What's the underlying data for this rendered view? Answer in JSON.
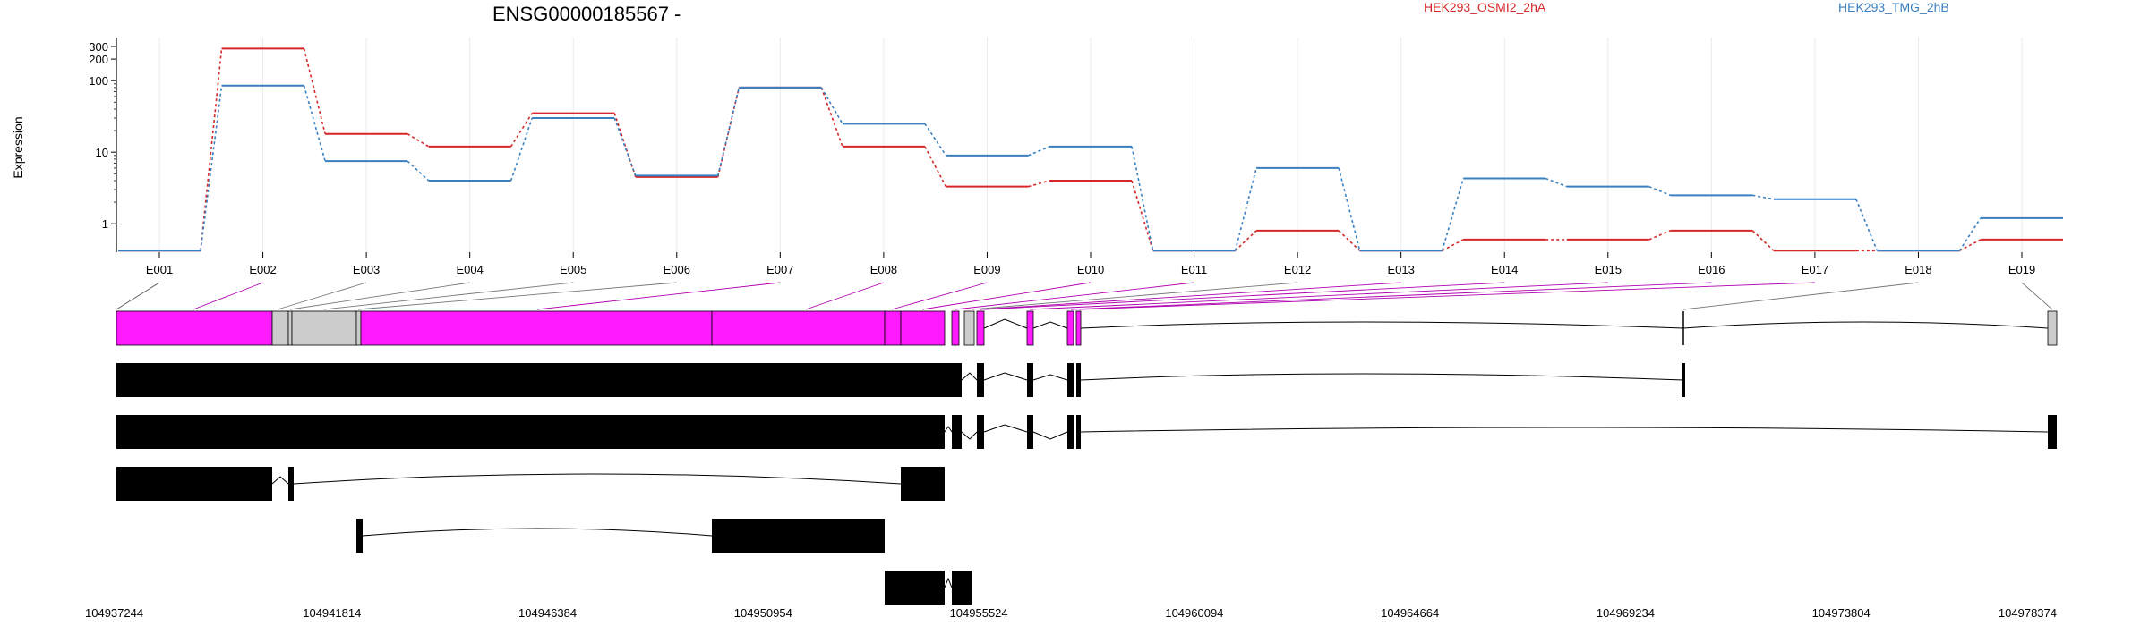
{
  "chart_data": {
    "type": "line",
    "title": "ENSG00000185567 -",
    "ylabel": "Expression",
    "yscale": "log",
    "ylim": [
      0.4,
      400
    ],
    "yticks": [
      1,
      10,
      100,
      200,
      300
    ],
    "ytick_labels": [
      "1",
      "10",
      "100",
      "200",
      "300"
    ],
    "categories": [
      "E001",
      "E002",
      "E003",
      "E004",
      "E005",
      "E006",
      "E007",
      "E008",
      "E009",
      "E010",
      "E011",
      "E012",
      "E013",
      "E014",
      "E015",
      "E016",
      "E017",
      "E018",
      "E019"
    ],
    "series": [
      {
        "name": "HEK293_OSMI2_2hA",
        "color": "#d62728",
        "values": [
          0.42,
          280,
          18,
          12,
          35,
          4.5,
          80,
          12,
          3.3,
          4,
          0.42,
          0.8,
          0.42,
          0.6,
          0.6,
          0.8,
          0.42,
          0.42,
          0.6
        ]
      },
      {
        "name": "HEK293_TMG_2hB",
        "color": "#3a7fbf",
        "values": [
          0.42,
          85,
          7.5,
          4,
          30,
          4.7,
          80,
          25,
          9,
          12,
          0.42,
          6,
          0.42,
          4.3,
          3.3,
          2.5,
          2.2,
          0.42,
          1.2
        ]
      }
    ],
    "grid": true,
    "legend_placement": "top-right",
    "genome_coords": [
      "104937244",
      "104941814",
      "104946384",
      "104950954",
      "104955524",
      "104960094",
      "104964664",
      "104969234",
      "104973804",
      "104978374"
    ],
    "gene_model": {
      "exon_color": "#ff1aff",
      "other_color": "#cccccc",
      "transcript_color": "#000000"
    }
  }
}
